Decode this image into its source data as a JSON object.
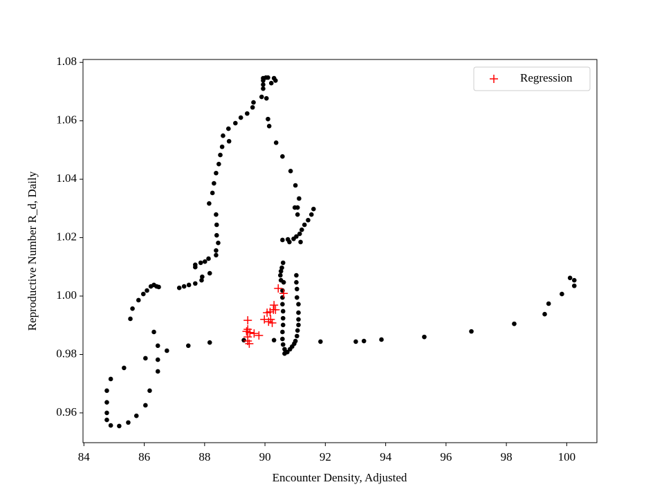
{
  "chart_data": {
    "type": "scatter",
    "xlabel": "Encounter Density, Adjusted",
    "ylabel": "Reproductive Number R_d, Daily",
    "xlim": [
      83.97,
      101.0
    ],
    "ylim": [
      0.9498,
      1.081
    ],
    "xticks": [
      84,
      86,
      88,
      90,
      92,
      94,
      96,
      98,
      100
    ],
    "yticks": [
      0.96,
      0.98,
      {
        "value": 1,
        "label": "1.00"
      },
      1.02,
      1.04,
      1.06,
      1.08
    ],
    "legend": "upper right",
    "series": [
      {
        "color": "#000000",
        "marker": "o",
        "x": [
          84.76,
          84.76,
          84.76,
          84.76,
          84.89,
          85.17,
          85.47,
          85.74,
          86.04,
          86.18,
          86.45,
          86.45,
          86.45,
          86.32,
          84.89,
          85.33,
          86.04,
          86.75,
          87.46,
          88.17,
          89.3,
          90.3,
          91.84,
          93.01,
          93.28,
          93.86,
          95.28,
          96.84,
          98.26,
          99.27,
          99.4,
          99.84,
          100.11,
          100.25,
          100.25,
          85.54,
          85.61,
          85.81,
          85.97,
          86.09,
          86.22,
          86.32,
          86.41,
          86.48,
          87.16,
          87.32,
          87.48,
          87.69,
          87.69,
          87.69,
          87.9,
          87.92,
          87.87,
          88.01,
          88.13,
          88.17,
          88.38,
          88.38,
          88.45,
          88.4,
          88.4,
          88.38,
          88.15,
          88.26,
          88.31,
          88.38,
          88.47,
          88.52,
          88.58,
          88.61,
          88.79,
          88.81,
          89.02,
          89.2,
          89.41,
          89.59,
          89.62,
          89.89,
          89.94,
          89.94,
          89.94,
          89.94,
          90.03,
          90.1,
          90.3,
          90.35,
          90.21,
          90.05,
          90.1,
          90.14,
          90.37,
          90.58,
          90.85,
          91.01,
          91.13,
          90.99,
          91.08,
          91.08,
          91.61,
          91.54,
          91.43,
          91.31,
          91.22,
          91.15,
          91.04,
          90.95,
          90.76,
          90.58,
          90.81,
          91.18,
          90.6,
          90.56,
          90.53,
          90.51,
          90.53,
          90.62,
          91.04,
          91.04,
          91.06,
          91.06,
          91.11,
          91.11,
          91.11,
          91.11,
          91.08,
          91.06,
          91.01,
          90.97,
          90.9,
          90.83,
          90.74,
          90.65,
          90.65,
          90.6,
          90.58,
          90.58,
          90.6,
          90.6,
          90.6,
          90.58,
          90.58,
          90.58
        ],
        "values": [
          0.9676,
          0.9636,
          0.96,
          0.9576,
          0.9557,
          0.9555,
          0.9567,
          0.959,
          0.9626,
          0.9676,
          0.9742,
          0.9782,
          0.983,
          0.9877,
          0.9716,
          0.9754,
          0.9787,
          0.9813,
          0.983,
          0.9841,
          0.9849,
          0.9849,
          0.9844,
          0.9844,
          0.9846,
          0.9851,
          0.986,
          0.9879,
          0.9905,
          0.9938,
          0.9974,
          1.0007,
          1.0062,
          1.0054,
          1.0035,
          0.9922,
          0.9957,
          0.9986,
          1.0007,
          1.0019,
          1.0033,
          1.0038,
          1.0033,
          1.0031,
          1.0028,
          1.0033,
          1.0038,
          1.0043,
          1.0099,
          1.0107,
          1.0054,
          1.0066,
          1.0114,
          1.0118,
          1.0128,
          1.0078,
          1.014,
          1.0156,
          1.0182,
          1.0208,
          1.0244,
          1.0279,
          1.0317,
          1.0353,
          1.0386,
          1.0421,
          1.0452,
          1.0483,
          1.0511,
          1.0549,
          1.0573,
          1.053,
          1.0592,
          1.0611,
          1.0625,
          1.0646,
          1.0663,
          1.0682,
          1.071,
          1.0724,
          1.0738,
          1.0746,
          1.0748,
          1.0748,
          1.0746,
          1.0738,
          1.0729,
          1.0677,
          1.0606,
          1.0582,
          1.0525,
          1.0478,
          1.0428,
          1.0379,
          1.0334,
          1.0303,
          1.0303,
          1.0279,
          1.0298,
          1.0279,
          1.026,
          1.0244,
          1.0227,
          1.0213,
          1.0204,
          1.0196,
          1.0194,
          1.0192,
          1.0185,
          1.0185,
          1.0114,
          1.0097,
          1.0085,
          1.0071,
          1.0054,
          1.0047,
          1.0071,
          1.0047,
          1.0024,
          0.9995,
          0.9972,
          0.9943,
          0.992,
          0.9901,
          0.9882,
          0.9863,
          0.9846,
          0.9837,
          0.9827,
          0.9818,
          0.9808,
          0.9803,
          0.9818,
          0.9834,
          0.9853,
          0.9877,
          0.9901,
          0.9924,
          0.9948,
          0.9972,
          0.9995,
          1.0019
        ]
      },
      {
        "name": "Regression",
        "color": "#ff0000",
        "marker": "+",
        "x": [
          89.43,
          89.43,
          89.39,
          89.5,
          89.43,
          89.43,
          89.48,
          89.64,
          89.8,
          89.98,
          90.07,
          90.12,
          90.19,
          90.24,
          90.28,
          90.3,
          90.35,
          90.44,
          90.62,
          90.17
        ],
        "values": [
          0.9917,
          0.9886,
          0.9879,
          0.9875,
          0.986,
          0.9846,
          0.9837,
          0.9872,
          0.9865,
          0.992,
          0.9943,
          0.9912,
          0.992,
          0.9908,
          0.9953,
          0.9969,
          0.9953,
          1.0026,
          1.0009,
          0.9946
        ]
      }
    ]
  }
}
